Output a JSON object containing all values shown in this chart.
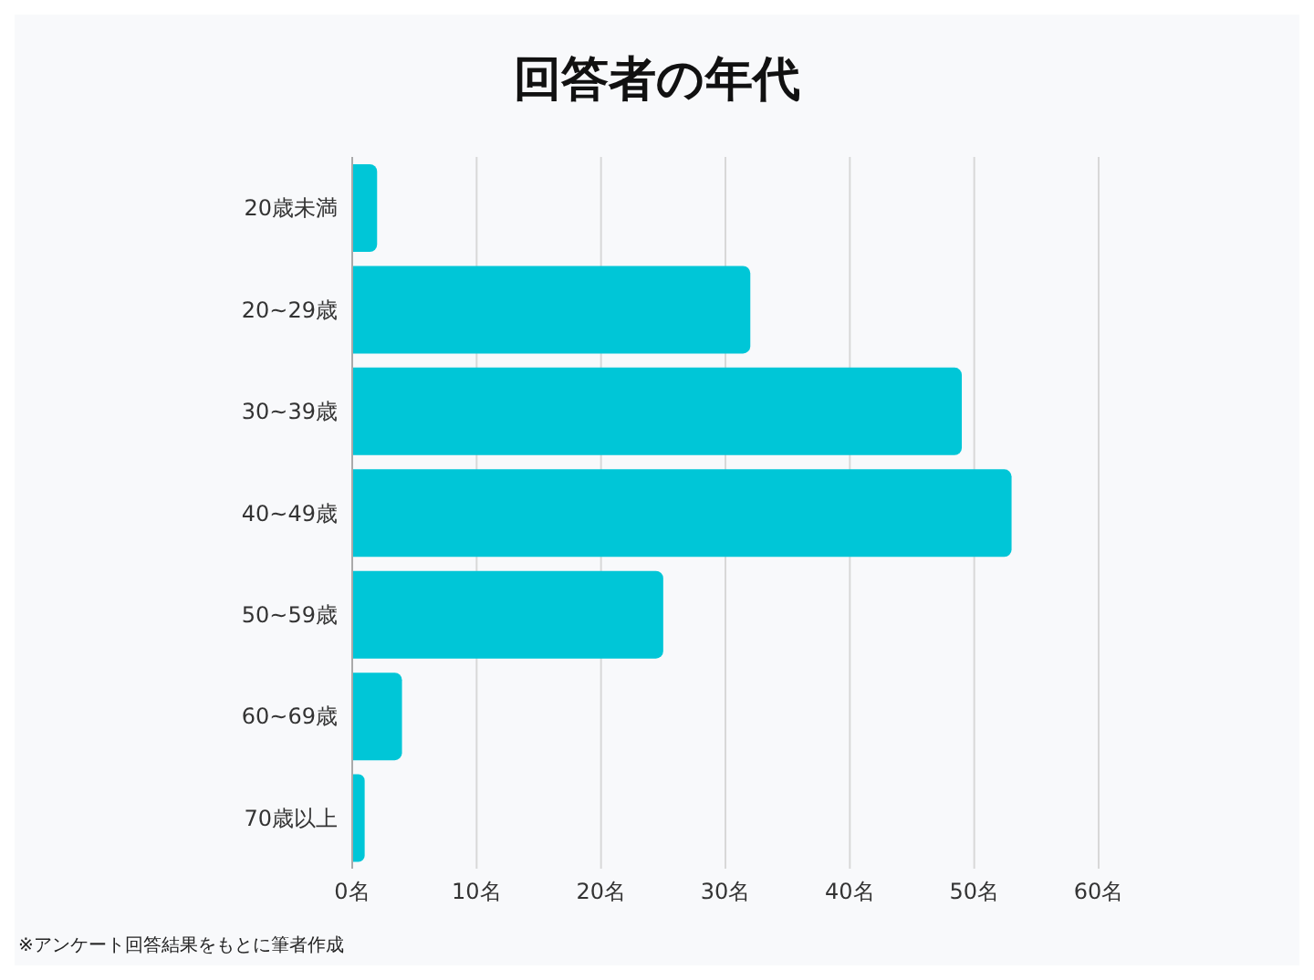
{
  "chart_data": {
    "type": "bar",
    "orientation": "horizontal",
    "title": "回答者の年代",
    "categories": [
      "20歳未満",
      "20~29歳",
      "30~39歳",
      "40~49歳",
      "50~59歳",
      "60~69歳",
      "70歳以上"
    ],
    "values": [
      2,
      32,
      49,
      53,
      25,
      4,
      1
    ],
    "color": "#00c6d7",
    "xlim": [
      0,
      60
    ],
    "xticks": [
      {
        "value": 0,
        "label": "0名"
      },
      {
        "value": 10,
        "label": "10名"
      },
      {
        "value": 20,
        "label": "20名"
      },
      {
        "value": 30,
        "label": "30名"
      },
      {
        "value": 40,
        "label": "40名"
      },
      {
        "value": 50,
        "label": "50名"
      },
      {
        "value": 60,
        "label": "60名"
      }
    ],
    "grid": "x",
    "legend": false,
    "annotations": [
      "※アンケート回答結果をもとに筆者作成"
    ]
  }
}
